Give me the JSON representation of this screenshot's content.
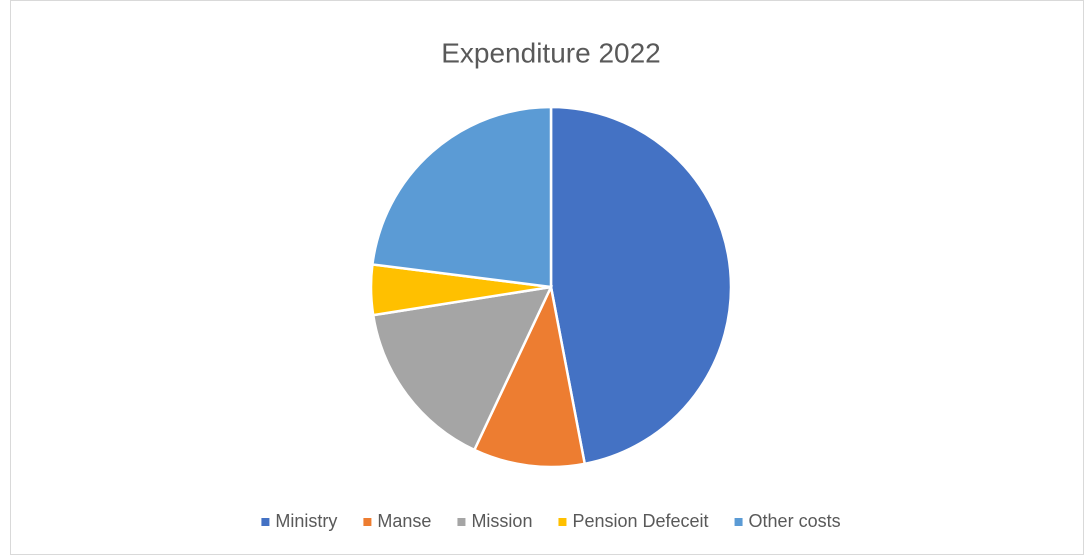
{
  "chart_data": {
    "type": "pie",
    "title": "Expenditure 2022",
    "categories": [
      "Ministry",
      "Manse",
      "Mission",
      "Pension Defeceit",
      "Other costs"
    ],
    "values": [
      47,
      10,
      15.5,
      4.5,
      23
    ],
    "colors": [
      "#4472c4",
      "#ed7d31",
      "#a5a5a5",
      "#ffc000",
      "#5b9bd5"
    ],
    "legend": "bottom"
  }
}
